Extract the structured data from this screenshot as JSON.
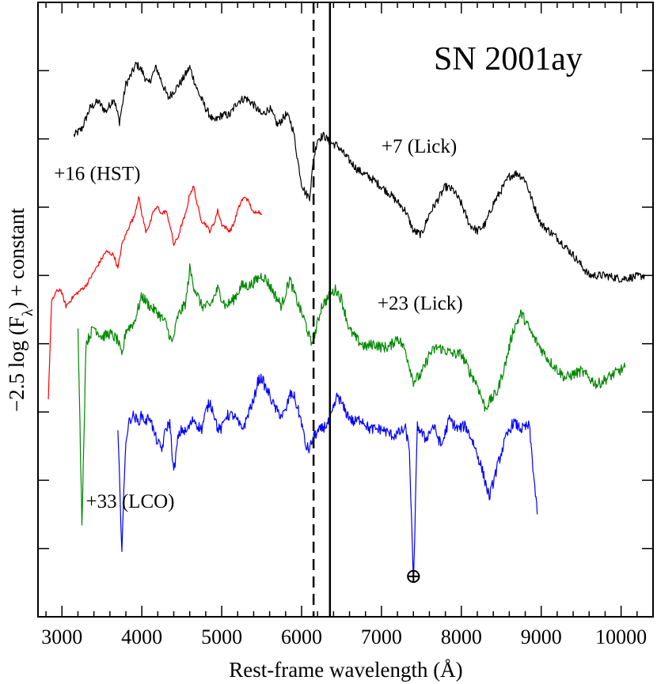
{
  "chart_data": {
    "type": "line",
    "title": "SN 2001ay",
    "xlabel": "Rest-frame wavelength (Å)",
    "ylabel": "−2.5 log (F",
    "ylabel_sub": "λ",
    "ylabel_tail": ") + constant",
    "xlim": [
      2700,
      10400
    ],
    "ylim": [
      0,
      9
    ],
    "x_ticks": [
      3000,
      4000,
      5000,
      6000,
      7000,
      8000,
      9000,
      10000
    ],
    "x_tick_labels": [
      "3000",
      "4000",
      "5000",
      "6000",
      "7000",
      "8000",
      "9000",
      "10000"
    ],
    "x_minor_step": 200,
    "y_ticks": [
      1,
      2,
      3,
      4,
      5,
      6,
      7,
      8
    ],
    "grid": false,
    "vertical_lines": [
      {
        "x": 6150,
        "style": "dashed"
      },
      {
        "x": 6355,
        "style": "solid"
      }
    ],
    "annotations": [
      {
        "text": "⊕",
        "x": 7400,
        "y": 0.5
      }
    ],
    "series": [
      {
        "name": "+7 (Lick)",
        "label": "+7 (Lick)",
        "label_pos": [
          7000,
          6.8
        ],
        "color": "#000000",
        "noise": 0.06,
        "x": [
          3150,
          3250,
          3350,
          3450,
          3550,
          3650,
          3720,
          3800,
          3850,
          3930,
          4000,
          4080,
          4180,
          4260,
          4330,
          4400,
          4500,
          4600,
          4700,
          4800,
          4900,
          5000,
          5100,
          5200,
          5300,
          5400,
          5500,
          5600,
          5700,
          5800,
          5850,
          5900,
          5950,
          6000,
          6050,
          6100,
          6150,
          6200,
          6280,
          6350,
          6450,
          6550,
          6700,
          6900,
          7100,
          7300,
          7400,
          7500,
          7600,
          7700,
          7800,
          7900,
          8000,
          8100,
          8200,
          8300,
          8400,
          8500,
          8600,
          8700,
          8800,
          8900,
          9000,
          9200,
          9400,
          9600,
          9800,
          10000,
          10300
        ],
        "y": [
          7.05,
          7.15,
          7.45,
          7.55,
          7.4,
          7.6,
          7.25,
          7.8,
          7.9,
          8.1,
          8.0,
          7.8,
          8.05,
          7.8,
          7.6,
          7.7,
          7.85,
          8.05,
          7.7,
          7.45,
          7.25,
          7.35,
          7.35,
          7.55,
          7.6,
          7.5,
          7.35,
          7.45,
          7.2,
          7.35,
          7.3,
          7.1,
          6.7,
          6.35,
          6.2,
          6.15,
          6.7,
          7.0,
          7.05,
          6.95,
          6.9,
          6.75,
          6.55,
          6.4,
          6.2,
          5.95,
          5.65,
          5.6,
          5.9,
          6.1,
          6.3,
          6.25,
          6.05,
          5.75,
          5.65,
          5.75,
          6.05,
          6.25,
          6.45,
          6.5,
          6.4,
          6.05,
          5.75,
          5.55,
          5.3,
          5.0,
          5.0,
          4.95,
          5.0
        ]
      },
      {
        "name": "+16 (HST)",
        "label": "+16 (HST)",
        "label_pos": [
          2900,
          6.4
        ],
        "color": "#ff0000",
        "noise": 0.03,
        "x": [
          2830,
          2870,
          2920,
          2980,
          3050,
          3150,
          3300,
          3450,
          3550,
          3650,
          3700,
          3750,
          3800,
          3850,
          3900,
          3960,
          4000,
          4050,
          4100,
          4150,
          4200,
          4250,
          4300,
          4350,
          4400,
          4450,
          4500,
          4550,
          4600,
          4650,
          4700,
          4750,
          4800,
          4850,
          4900,
          4950,
          5000,
          5050,
          5100,
          5150,
          5200,
          5250,
          5300,
          5350,
          5400,
          5450,
          5500
        ],
        "y": [
          3.2,
          4.6,
          4.75,
          4.8,
          4.55,
          4.7,
          4.85,
          5.15,
          5.35,
          5.3,
          5.1,
          5.45,
          5.6,
          5.75,
          5.85,
          6.15,
          5.9,
          5.65,
          5.75,
          5.95,
          6.0,
          5.9,
          5.95,
          5.75,
          5.45,
          5.55,
          5.75,
          5.9,
          6.2,
          6.3,
          6.0,
          5.8,
          5.75,
          5.65,
          5.75,
          5.95,
          5.75,
          5.7,
          5.65,
          5.75,
          5.95,
          6.1,
          6.15,
          6.05,
          5.9,
          5.95,
          5.9
        ]
      },
      {
        "name": "+23 (Lick)",
        "label": "+23 (Lick)",
        "label_pos": [
          6950,
          4.5
        ],
        "color": "#008800",
        "noise": 0.08,
        "x": [
          3200,
          3250,
          3300,
          3400,
          3500,
          3600,
          3700,
          3750,
          3800,
          3900,
          4000,
          4100,
          4200,
          4300,
          4380,
          4450,
          4550,
          4600,
          4650,
          4750,
          4850,
          4950,
          5050,
          5150,
          5250,
          5350,
          5450,
          5500,
          5550,
          5650,
          5750,
          5850,
          5950,
          6050,
          6120,
          6180,
          6250,
          6350,
          6430,
          6500,
          6600,
          6700,
          6800,
          6900,
          7000,
          7100,
          7200,
          7300,
          7400,
          7500,
          7600,
          7700,
          7800,
          7900,
          8000,
          8100,
          8200,
          8300,
          8350,
          8450,
          8550,
          8650,
          8750,
          8900,
          9100,
          9300,
          9500,
          9700,
          9900,
          10050
        ],
        "y": [
          4.3,
          1.3,
          4.0,
          4.25,
          4.1,
          4.15,
          4.05,
          3.8,
          4.2,
          4.3,
          4.7,
          4.55,
          4.45,
          4.3,
          4.0,
          4.4,
          4.6,
          5.1,
          4.85,
          4.55,
          4.55,
          4.8,
          4.55,
          4.65,
          4.85,
          4.85,
          4.95,
          5.0,
          4.95,
          4.75,
          4.55,
          4.95,
          4.6,
          4.3,
          4.0,
          4.2,
          4.55,
          4.7,
          4.8,
          4.65,
          4.2,
          4.05,
          3.95,
          4.0,
          3.95,
          3.95,
          4.1,
          3.9,
          3.45,
          3.55,
          3.85,
          3.95,
          3.9,
          3.85,
          3.85,
          3.6,
          3.4,
          3.05,
          3.15,
          3.3,
          3.7,
          4.2,
          4.45,
          4.1,
          3.75,
          3.5,
          3.6,
          3.4,
          3.55,
          3.65
        ]
      },
      {
        "name": "+33 (LCO)",
        "label": "+33 (LCO)",
        "label_pos": [
          3300,
          1.6
        ],
        "color": "#0000ff",
        "noise": 0.08,
        "x": [
          3700,
          3750,
          3800,
          3850,
          3900,
          3950,
          4000,
          4050,
          4100,
          4150,
          4200,
          4250,
          4300,
          4350,
          4400,
          4450,
          4500,
          4550,
          4600,
          4650,
          4700,
          4750,
          4800,
          4850,
          4900,
          4950,
          5000,
          5050,
          5100,
          5150,
          5200,
          5250,
          5300,
          5350,
          5400,
          5450,
          5500,
          5550,
          5600,
          5650,
          5700,
          5750,
          5800,
          5850,
          5900,
          5950,
          6000,
          6050,
          6100,
          6150,
          6250,
          6350,
          6450,
          6550,
          6650,
          6750,
          6850,
          7000,
          7150,
          7300,
          7350,
          7400,
          7450,
          7550,
          7650,
          7750,
          7850,
          7950,
          8050,
          8150,
          8250,
          8350,
          8450,
          8550,
          8650,
          8750,
          8850,
          8950
        ],
        "y": [
          2.7,
          1.0,
          2.6,
          2.9,
          2.95,
          2.85,
          2.95,
          2.85,
          2.95,
          2.7,
          2.55,
          2.45,
          2.75,
          2.85,
          2.1,
          2.6,
          2.75,
          2.7,
          2.8,
          2.9,
          2.8,
          2.75,
          3.0,
          3.15,
          3.0,
          2.75,
          2.75,
          2.95,
          2.95,
          2.95,
          2.85,
          2.75,
          2.85,
          3.05,
          3.15,
          3.45,
          3.5,
          3.35,
          3.25,
          3.1,
          3.0,
          2.95,
          3.0,
          3.25,
          3.25,
          3.05,
          2.85,
          2.5,
          2.45,
          2.65,
          2.75,
          2.85,
          3.25,
          3.0,
          2.85,
          2.9,
          2.75,
          2.75,
          2.65,
          2.75,
          2.45,
          0.45,
          2.8,
          2.6,
          2.8,
          2.5,
          2.9,
          2.75,
          2.8,
          2.55,
          2.2,
          1.75,
          2.2,
          2.6,
          2.85,
          2.75,
          2.8,
          1.5
        ]
      }
    ]
  }
}
